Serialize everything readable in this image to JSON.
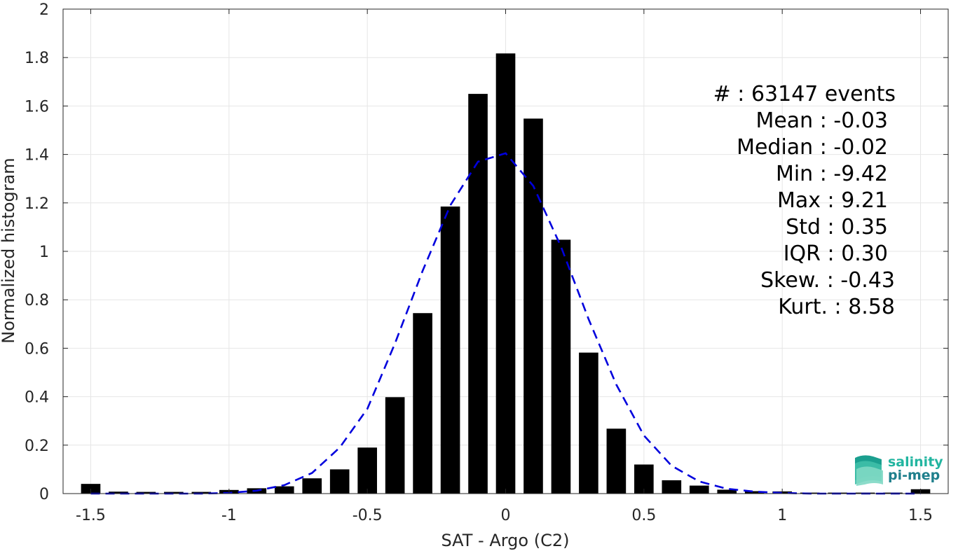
{
  "chart_data": {
    "type": "bar",
    "xlabel": "SAT - Argo (C2)",
    "ylabel": "Normalized histogram",
    "xlim": [
      -1.6,
      1.6
    ],
    "ylim": [
      0,
      2
    ],
    "xticks": [
      -1.5,
      -1,
      -0.5,
      0,
      0.5,
      1,
      1.5
    ],
    "xtick_labels": [
      "-1.5",
      "-1",
      "-0.5",
      "0",
      "0.5",
      "1",
      "1.5"
    ],
    "yticks": [
      0,
      0.2,
      0.4,
      0.6,
      0.8,
      1,
      1.2,
      1.4,
      1.6,
      1.8,
      2
    ],
    "ytick_labels": [
      "0",
      "0.2",
      "0.4",
      "0.6",
      "0.8",
      "1",
      "1.2",
      "1.4",
      "1.6",
      "1.8",
      "2"
    ],
    "grid": true,
    "bar_color": "#000000",
    "fit_color": "#0000dd",
    "bars": {
      "x": [
        -1.5,
        -1.4,
        -1.3,
        -1.2,
        -1.1,
        -1.0,
        -0.9,
        -0.8,
        -0.7,
        -0.6,
        -0.5,
        -0.4,
        -0.3,
        -0.2,
        -0.1,
        0.0,
        0.1,
        0.2,
        0.3,
        0.4,
        0.5,
        0.6,
        0.7,
        0.8,
        0.9,
        1.0,
        1.1,
        1.2,
        1.3,
        1.4,
        1.5
      ],
      "values": [
        0.04,
        0.008,
        0.007,
        0.007,
        0.007,
        0.015,
        0.022,
        0.03,
        0.063,
        0.1,
        0.19,
        0.398,
        0.745,
        1.185,
        1.65,
        1.817,
        1.548,
        1.048,
        0.582,
        0.268,
        0.12,
        0.055,
        0.033,
        0.016,
        0.01,
        0.009,
        0.004,
        0.004,
        0.004,
        0.004,
        0.018
      ]
    },
    "fit_line": {
      "style": "dashed",
      "x": [
        -1.5,
        -1.4,
        -1.3,
        -1.2,
        -1.1,
        -1.0,
        -0.9,
        -0.8,
        -0.7,
        -0.6,
        -0.5,
        -0.4,
        -0.3,
        -0.2,
        -0.1,
        0.0,
        0.1,
        0.2,
        0.3,
        0.4,
        0.5,
        0.6,
        0.7,
        0.8,
        0.9,
        1.0,
        1.1,
        1.2,
        1.3,
        1.4,
        1.5
      ],
      "y": [
        0.0,
        0.0,
        0.0,
        0.0,
        0.0,
        0.003,
        0.012,
        0.035,
        0.085,
        0.19,
        0.35,
        0.62,
        0.92,
        1.19,
        1.37,
        1.405,
        1.27,
        1.02,
        0.72,
        0.45,
        0.24,
        0.115,
        0.05,
        0.02,
        0.008,
        0.003,
        0.0,
        0.0,
        0.0,
        0.0,
        0.0
      ]
    },
    "stats": [
      "#  : 63147 events",
      "Mean : -0.03",
      "Median : -0.02",
      "Min : -9.42",
      "Max : 9.21",
      "Std : 0.35",
      "IQR : 0.30",
      "Skew. : -0.43",
      "Kurt. : 8.58"
    ]
  },
  "logo": {
    "line1": "salinity",
    "line2": "pi-mep",
    "color1": "#22b5a0",
    "color2": "#1f7f8c"
  }
}
